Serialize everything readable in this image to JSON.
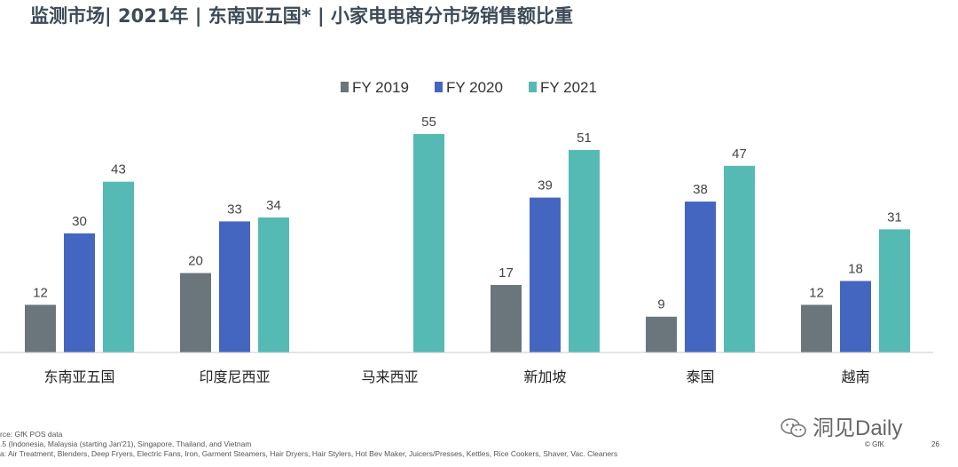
{
  "title": "监测市场| 2021年 | 东南亚五国* | 小家电电商分市场销售额比重",
  "chart_data": {
    "type": "bar",
    "categories": [
      "东南亚五国",
      "印度尼西亚",
      "马来西亚",
      "新加坡",
      "泰国",
      "越南"
    ],
    "series": [
      {
        "name": "FY 2019",
        "color": "#6b757c",
        "values": [
          12,
          20,
          null,
          17,
          9,
          12
        ]
      },
      {
        "name": "FY 2020",
        "color": "#4466c0",
        "values": [
          30,
          33,
          null,
          39,
          38,
          18
        ]
      },
      {
        "name": "FY 2021",
        "color": "#55bab3",
        "values": [
          43,
          34,
          55,
          51,
          47,
          31
        ]
      }
    ],
    "ylim": [
      0,
      55
    ],
    "legend": "top-center"
  },
  "footer": {
    "source": "rce: GfK POS data",
    "markets": ".5 (Indonesia, Malaysia (starting Jan'21), Singapore, Thailand, and Vietnam",
    "categories": "a: Air Treatment, Blenders, Deep Fryers, Electric Fans, Iron, Garment Steamers, Hair Dryers, Hair Stylers, Hot Bev Maker, Juicers/Presses, Kettles,  Rice Cookers, Shaver, Vac. Cleaners",
    "watermark": "洞见Daily",
    "brand": "© GfK",
    "page": "26"
  }
}
